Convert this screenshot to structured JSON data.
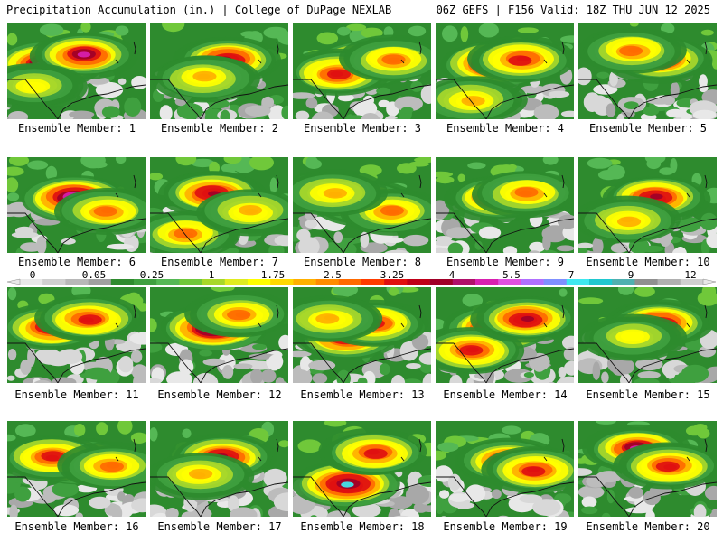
{
  "header": {
    "left": "Precipitation Accumulation (in.) | College of DuPage NEXLAB",
    "right": "06Z GEFS | F156 Valid: 18Z THU JUN 12 2025"
  },
  "panels": [
    {
      "label": "Ensemble Member: 1"
    },
    {
      "label": "Ensemble Member: 2"
    },
    {
      "label": "Ensemble Member: 3"
    },
    {
      "label": "Ensemble Member: 4"
    },
    {
      "label": "Ensemble Member: 5"
    },
    {
      "label": "Ensemble Member: 6"
    },
    {
      "label": "Ensemble Member: 7"
    },
    {
      "label": "Ensemble Member: 8"
    },
    {
      "label": "Ensemble Member: 9"
    },
    {
      "label": "Ensemble Member: 10"
    },
    {
      "label": "Ensemble Member: 11"
    },
    {
      "label": "Ensemble Member: 12"
    },
    {
      "label": "Ensemble Member: 13"
    },
    {
      "label": "Ensemble Member: 14"
    },
    {
      "label": "Ensemble Member: 15"
    },
    {
      "label": "Ensemble Member: 16"
    },
    {
      "label": "Ensemble Member: 17"
    },
    {
      "label": "Ensemble Member: 18"
    },
    {
      "label": "Ensemble Member: 19"
    },
    {
      "label": "Ensemble Member: 20"
    }
  ],
  "colorbar": {
    "labels": [
      "0",
      "0.05",
      "0.25",
      "1",
      "1.75",
      "2.5",
      "3.25",
      "4",
      "5.5",
      "7",
      "9",
      "12"
    ],
    "colors": [
      "#e8e8e8",
      "#d0d0d0",
      "#b8b8b8",
      "#a0a0a0",
      "#2e8b2e",
      "#3fa03f",
      "#55b855",
      "#70c83a",
      "#a8d82a",
      "#e0ec20",
      "#ffff00",
      "#ffd800",
      "#ffb000",
      "#ff8c00",
      "#ff6a00",
      "#ff3c00",
      "#e01010",
      "#c00018",
      "#a00028",
      "#b0106a",
      "#d820b0",
      "#e050e0",
      "#b070ff",
      "#8090ff",
      "#40e8f0",
      "#20c8d0",
      "#50b0b0",
      "#909090",
      "#b0b0b0",
      "#d0d0d0"
    ]
  }
}
